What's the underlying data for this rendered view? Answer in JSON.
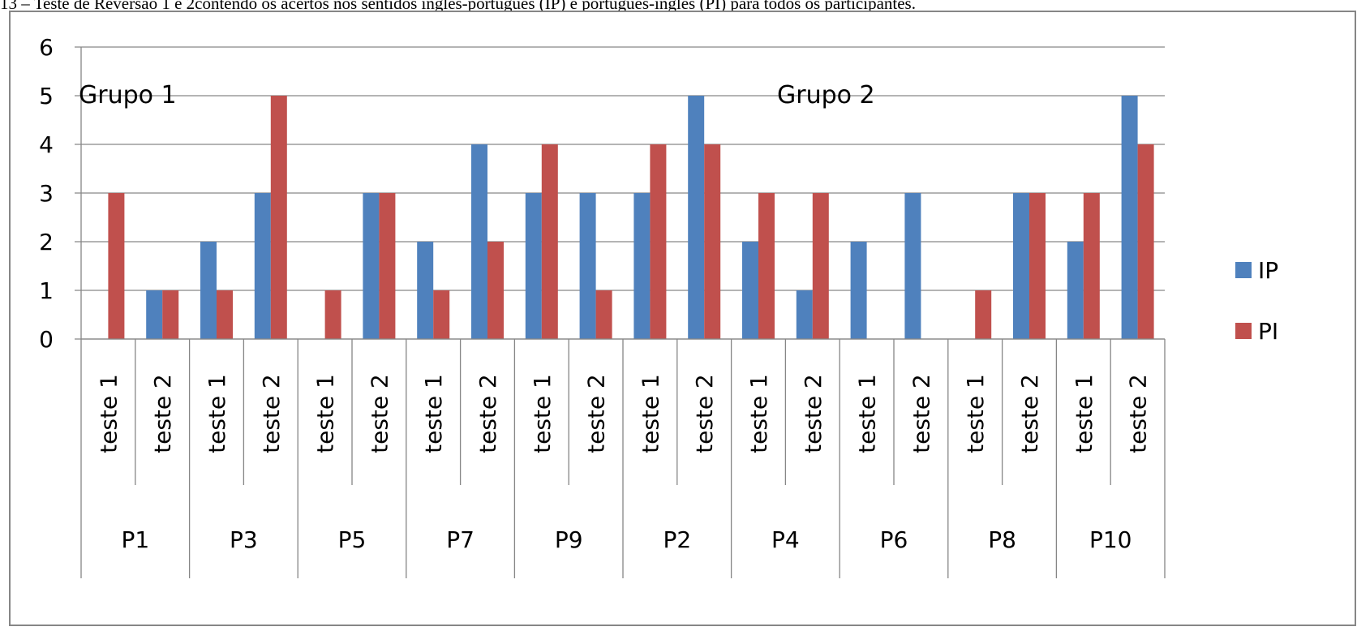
{
  "caption": "13 – Teste de Reversão 1 e 2contendo os acertos nos sentidos inglês-português (IP) e português-inglês (PI) para todos os participantes.",
  "colors": {
    "IP": "#4f81bd",
    "PI": "#c0504d",
    "grid": "#868686",
    "frame": "#868686"
  },
  "chart_data": {
    "type": "bar",
    "title": "",
    "xlabel": "",
    "ylabel": "",
    "ylim": [
      0,
      6
    ],
    "yticks": [
      "0",
      "1",
      "2",
      "3",
      "4",
      "5",
      "6"
    ],
    "grid": true,
    "legend_position": "right",
    "groups": [
      "P1",
      "P3",
      "P5",
      "P7",
      "P9",
      "P2",
      "P4",
      "P6",
      "P8",
      "P10"
    ],
    "subcategories": [
      "teste 1",
      "teste 2"
    ],
    "categories": [
      "P1 teste 1",
      "P1 teste 2",
      "P3 teste 1",
      "P3 teste 2",
      "P5 teste 1",
      "P5 teste 2",
      "P7 teste 1",
      "P7 teste 2",
      "P9 teste 1",
      "P9 teste 2",
      "P2 teste 1",
      "P2 teste 2",
      "P4 teste 1",
      "P4 teste 2",
      "P6 teste 1",
      "P6 teste 2",
      "P8 teste 1",
      "P8 teste 2",
      "P10 teste 1",
      "P10 teste 2"
    ],
    "series": [
      {
        "name": "IP",
        "values": [
          0,
          1,
          2,
          3,
          0,
          3,
          2,
          4,
          3,
          3,
          3,
          5,
          2,
          1,
          2,
          3,
          0,
          3,
          2,
          5
        ]
      },
      {
        "name": "PI",
        "values": [
          3,
          1,
          1,
          5,
          1,
          3,
          1,
          2,
          4,
          1,
          4,
          4,
          3,
          3,
          0,
          0,
          1,
          3,
          3,
          4
        ]
      }
    ],
    "annotations": [
      "Grupo 1",
      "Grupo 2"
    ]
  }
}
